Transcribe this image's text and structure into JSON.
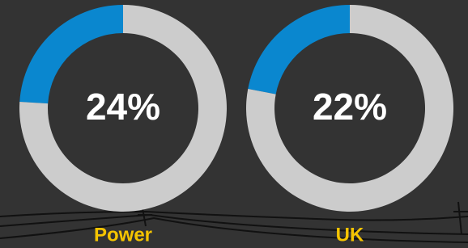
{
  "chart_data": [
    {
      "type": "donut",
      "title": "Power",
      "values": [
        24,
        76
      ],
      "value_labels": [
        "24%",
        null
      ],
      "colors": [
        "#0a87cf",
        "#cccccc"
      ]
    },
    {
      "type": "donut",
      "title": "UK",
      "values": [
        22,
        78
      ],
      "value_labels": [
        "22%",
        null
      ],
      "colors": [
        "#0a87cf",
        "#cccccc"
      ]
    }
  ]
}
